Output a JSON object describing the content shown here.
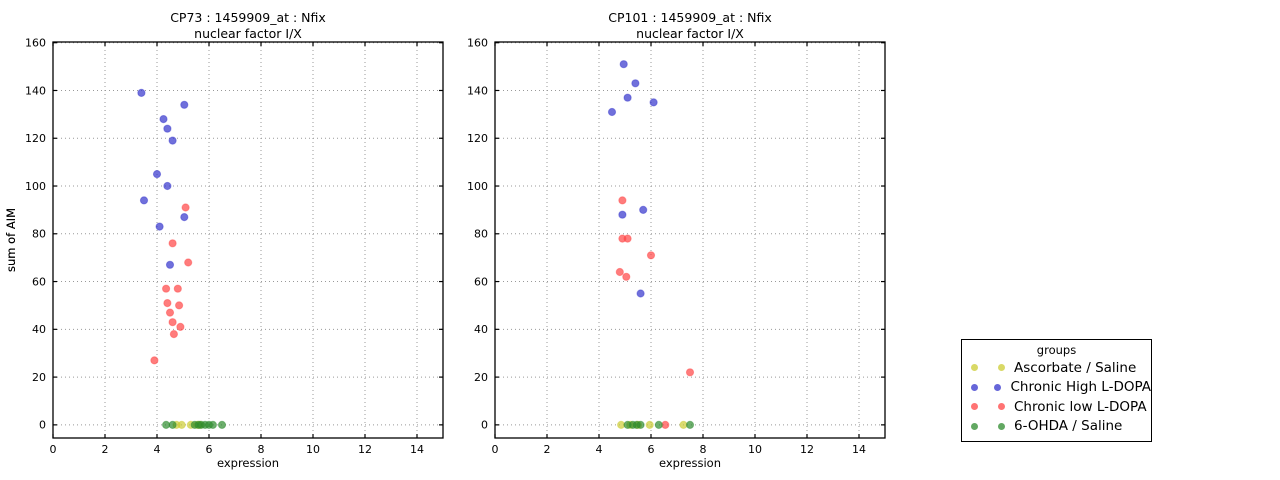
{
  "figure": {
    "background": "#ffffff"
  },
  "legend": {
    "title": "groups",
    "entries": [
      {
        "label": "Ascorbate / Saline",
        "color": "#cccc33"
      },
      {
        "label": "Chronic High L-DOPA",
        "color": "#3333cc"
      },
      {
        "label": "Chronic low L-DOPA",
        "color": "#ff4444"
      },
      {
        "label": "6-OHDA / Saline",
        "color": "#2e8b2e"
      }
    ]
  },
  "chart_data": [
    {
      "type": "scatter",
      "title_lines": [
        "CP73 : 1459909_at : Nfix",
        "nuclear factor I/X"
      ],
      "xlabel": "expression",
      "ylabel": "sum of AIM",
      "xlim": [
        0,
        15
      ],
      "ylim": [
        -5.5,
        160.3
      ],
      "xticks": [
        0,
        2,
        4,
        6,
        8,
        10,
        12,
        14
      ],
      "yticks": [
        0,
        20,
        40,
        60,
        80,
        100,
        120,
        140,
        160
      ],
      "grid": true,
      "series": [
        {
          "name": "Ascorbate / Saline",
          "color": "#cccc33",
          "points": [
            [
              4.75,
              0
            ],
            [
              4.95,
              0
            ],
            [
              5.3,
              0
            ],
            [
              5.55,
              0
            ],
            [
              5.65,
              0
            ]
          ]
        },
        {
          "name": "Chronic High L-DOPA",
          "color": "#3333cc",
          "points": [
            [
              3.4,
              139
            ],
            [
              5.05,
              134
            ],
            [
              4.25,
              128
            ],
            [
              4.4,
              124
            ],
            [
              4.6,
              119
            ],
            [
              4.0,
              105
            ],
            [
              4.4,
              100
            ],
            [
              3.5,
              94
            ],
            [
              5.05,
              87
            ],
            [
              4.1,
              83
            ],
            [
              4.5,
              67
            ]
          ]
        },
        {
          "name": "Chronic low L-DOPA",
          "color": "#ff4444",
          "points": [
            [
              5.1,
              91
            ],
            [
              4.6,
              76
            ],
            [
              5.2,
              68
            ],
            [
              4.35,
              57
            ],
            [
              4.8,
              57
            ],
            [
              4.4,
              51
            ],
            [
              4.85,
              50
            ],
            [
              4.5,
              47
            ],
            [
              4.6,
              43
            ],
            [
              4.9,
              41
            ],
            [
              4.65,
              38
            ],
            [
              3.9,
              27
            ]
          ]
        },
        {
          "name": "6-OHDA / Saline",
          "color": "#2e8b2e",
          "points": [
            [
              4.35,
              0
            ],
            [
              4.6,
              0
            ],
            [
              5.45,
              0
            ],
            [
              5.6,
              0
            ],
            [
              5.7,
              0
            ],
            [
              5.85,
              0
            ],
            [
              6.0,
              0
            ],
            [
              6.15,
              0
            ],
            [
              6.5,
              0
            ]
          ]
        }
      ]
    },
    {
      "type": "scatter",
      "title_lines": [
        "CP101 : 1459909_at : Nfix",
        "nuclear factor I/X"
      ],
      "xlabel": "expression",
      "ylabel": "sum of AIM",
      "xlim": [
        0,
        15
      ],
      "ylim": [
        -5.5,
        160.3
      ],
      "xticks": [
        0,
        2,
        4,
        6,
        8,
        10,
        12,
        14
      ],
      "yticks": [
        0,
        20,
        40,
        60,
        80,
        100,
        120,
        140,
        160
      ],
      "grid": true,
      "series": [
        {
          "name": "Ascorbate / Saline",
          "color": "#cccc33",
          "points": [
            [
              4.85,
              0
            ],
            [
              5.2,
              0
            ],
            [
              5.5,
              0
            ],
            [
              5.95,
              0
            ],
            [
              7.25,
              0
            ]
          ]
        },
        {
          "name": "Chronic High L-DOPA",
          "color": "#3333cc",
          "points": [
            [
              4.95,
              151
            ],
            [
              5.4,
              143
            ],
            [
              5.1,
              137
            ],
            [
              6.1,
              135
            ],
            [
              4.5,
              131
            ],
            [
              5.7,
              90
            ],
            [
              4.9,
              88
            ],
            [
              5.6,
              55
            ]
          ]
        },
        {
          "name": "Chronic low L-DOPA",
          "color": "#ff4444",
          "points": [
            [
              4.9,
              94
            ],
            [
              4.9,
              78
            ],
            [
              5.1,
              78
            ],
            [
              6.0,
              71
            ],
            [
              4.8,
              64
            ],
            [
              5.05,
              62
            ],
            [
              7.5,
              22
            ],
            [
              6.55,
              0
            ]
          ]
        },
        {
          "name": "6-OHDA / Saline",
          "color": "#2e8b2e",
          "points": [
            [
              5.1,
              0
            ],
            [
              5.3,
              0
            ],
            [
              5.45,
              0
            ],
            [
              5.6,
              0
            ],
            [
              6.3,
              0
            ],
            [
              7.5,
              0
            ]
          ]
        }
      ]
    }
  ]
}
